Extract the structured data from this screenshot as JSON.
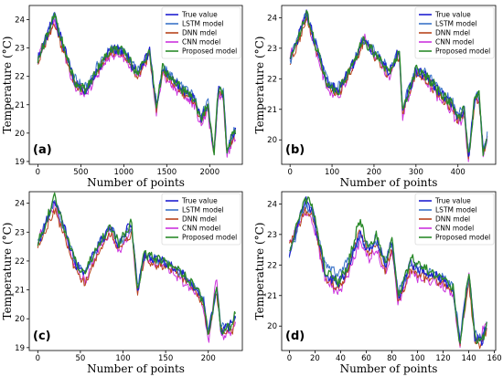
{
  "colors": {
    "true_value": "#1f1fd0",
    "lstm": "#3b73c8",
    "dnn": "#b8441c",
    "cnn": "#cc33dd",
    "proposed": "#2a8a2a"
  },
  "shared": {
    "xlabel": "Number of points",
    "ylabel": "Temperature (°C)",
    "legend_position": "top-right",
    "grid": false
  },
  "chart_data": [
    {
      "type": "line",
      "panel_label": "(a)",
      "xlabel": "Number of points",
      "ylabel": "Temperature (°C)",
      "xlim": [
        -100,
        2380
      ],
      "ylim": [
        18.9,
        24.5
      ],
      "xticks": [
        0,
        500,
        1000,
        1500,
        2000
      ],
      "yticks": [
        19,
        20,
        21,
        22,
        23,
        24
      ],
      "legend": [
        "True value",
        "LSTM model",
        "DNN mdel",
        "CNN model",
        "Proposed model"
      ],
      "key_x": [
        0,
        200,
        230,
        430,
        560,
        700,
        860,
        1000,
        1160,
        1300,
        1380,
        1450,
        1520,
        1700,
        1820,
        1900,
        1980,
        2050,
        2100,
        2160,
        2200,
        2250,
        2300
      ],
      "series": [
        {
          "name": "True value",
          "key_y": [
            22.6,
            24.2,
            23.7,
            21.8,
            21.5,
            22.3,
            23.0,
            22.9,
            22.1,
            22.9,
            20.9,
            22.3,
            22.0,
            21.5,
            21.2,
            20.5,
            21.0,
            19.2,
            21.6,
            21.4,
            19.3,
            19.8,
            20.1
          ]
        },
        {
          "name": "LSTM model",
          "key_y": [
            22.6,
            24.2,
            23.7,
            21.9,
            21.6,
            22.4,
            23.0,
            22.9,
            22.2,
            22.9,
            21.0,
            22.3,
            22.1,
            21.6,
            21.3,
            20.6,
            21.1,
            19.3,
            21.6,
            21.4,
            19.4,
            19.9,
            20.1
          ]
        },
        {
          "name": "DNN mdel",
          "key_y": [
            22.5,
            23.9,
            23.5,
            21.7,
            21.5,
            22.2,
            22.9,
            22.8,
            22.0,
            22.8,
            20.8,
            22.2,
            21.9,
            21.4,
            21.1,
            20.4,
            20.9,
            19.2,
            21.5,
            21.3,
            19.3,
            19.7,
            20.0
          ]
        },
        {
          "name": "CNN model",
          "key_y": [
            22.7,
            24.0,
            23.6,
            21.6,
            21.3,
            22.1,
            22.8,
            22.7,
            21.9,
            22.7,
            20.7,
            22.1,
            21.8,
            21.3,
            21.0,
            20.3,
            20.8,
            19.1,
            21.4,
            21.2,
            19.2,
            19.6,
            19.9
          ]
        },
        {
          "name": "Proposed model",
          "key_y": [
            22.6,
            24.2,
            23.7,
            21.8,
            21.5,
            22.3,
            23.0,
            22.9,
            22.1,
            22.9,
            20.9,
            22.3,
            22.0,
            21.5,
            21.2,
            20.5,
            21.0,
            19.2,
            21.6,
            21.4,
            19.3,
            19.8,
            20.1
          ]
        }
      ]
    },
    {
      "type": "line",
      "panel_label": "(b)",
      "xlabel": "Number of points",
      "ylabel": "Temperature (°C)",
      "xlim": [
        -20,
        490
      ],
      "ylim": [
        19.2,
        24.4
      ],
      "xticks": [
        0,
        100,
        200,
        300,
        400
      ],
      "yticks": [
        20,
        21,
        22,
        23,
        24
      ],
      "legend": [
        "True value",
        "LSTM model",
        "DNN mdel",
        "CNN model",
        "Proposed model"
      ],
      "key_x": [
        0,
        40,
        48,
        90,
        115,
        150,
        175,
        200,
        235,
        260,
        268,
        300,
        330,
        360,
        385,
        400,
        415,
        425,
        440,
        450,
        460,
        470
      ],
      "series": [
        {
          "name": "True value",
          "key_y": [
            22.6,
            24.2,
            23.7,
            21.8,
            21.6,
            22.5,
            23.3,
            22.9,
            22.2,
            22.9,
            21.0,
            22.3,
            22.0,
            21.5,
            21.2,
            20.7,
            21.0,
            19.4,
            21.3,
            21.6,
            19.6,
            20.1
          ]
        },
        {
          "name": "LSTM model",
          "key_y": [
            22.6,
            24.2,
            23.7,
            21.9,
            21.7,
            22.5,
            23.3,
            22.9,
            22.3,
            22.9,
            21.1,
            22.3,
            22.1,
            21.6,
            21.3,
            20.8,
            21.1,
            19.5,
            21.3,
            21.5,
            19.7,
            20.1
          ]
        },
        {
          "name": "DNN mdel",
          "key_y": [
            22.5,
            24.0,
            23.6,
            21.7,
            21.5,
            22.4,
            23.2,
            22.8,
            22.1,
            22.8,
            20.9,
            22.2,
            21.9,
            21.4,
            21.1,
            20.6,
            20.9,
            19.4,
            21.2,
            21.4,
            19.6,
            20.0
          ]
        },
        {
          "name": "CNN model",
          "key_y": [
            22.7,
            24.1,
            23.6,
            21.6,
            21.4,
            22.4,
            23.4,
            22.8,
            22.0,
            22.8,
            20.8,
            22.2,
            21.8,
            21.3,
            21.0,
            20.5,
            20.8,
            19.3,
            21.2,
            21.4,
            19.5,
            19.9
          ]
        },
        {
          "name": "Proposed model",
          "key_y": [
            22.6,
            24.2,
            23.7,
            21.8,
            21.6,
            22.5,
            23.3,
            22.9,
            22.2,
            22.9,
            21.0,
            22.3,
            22.0,
            21.5,
            21.2,
            20.7,
            21.0,
            19.4,
            21.3,
            21.6,
            19.6,
            20.1
          ]
        }
      ]
    },
    {
      "type": "line",
      "panel_label": "(c)",
      "xlabel": "Number of points",
      "ylabel": "Temperature (°C)",
      "xlim": [
        -10,
        240
      ],
      "ylim": [
        18.9,
        24.4
      ],
      "xticks": [
        0,
        50,
        100,
        150,
        200
      ],
      "yticks": [
        19,
        20,
        21,
        22,
        23,
        24
      ],
      "legend": [
        "True value",
        "LSTM model",
        "DNN mdel",
        "CNN model",
        "Proposed model"
      ],
      "key_x": [
        0,
        20,
        25,
        45,
        55,
        70,
        85,
        95,
        110,
        117,
        125,
        135,
        155,
        175,
        185,
        195,
        200,
        210,
        215,
        220,
        228,
        232
      ],
      "series": [
        {
          "name": "True value",
          "key_y": [
            22.6,
            24.2,
            23.7,
            21.9,
            21.6,
            22.5,
            23.2,
            22.6,
            23.3,
            21.0,
            22.3,
            22.1,
            21.9,
            21.4,
            21.1,
            20.5,
            19.4,
            21.1,
            19.6,
            19.7,
            19.8,
            20.2
          ]
        },
        {
          "name": "LSTM model",
          "key_y": [
            22.6,
            24.1,
            23.6,
            21.9,
            21.6,
            22.5,
            23.2,
            22.6,
            23.2,
            21.1,
            22.2,
            22.1,
            21.9,
            21.4,
            21.1,
            20.6,
            19.5,
            21.0,
            19.7,
            19.8,
            19.8,
            20.1
          ]
        },
        {
          "name": "DNN mdel",
          "key_y": [
            22.5,
            23.8,
            23.4,
            21.6,
            21.2,
            22.2,
            23.0,
            22.4,
            23.0,
            20.9,
            22.1,
            21.9,
            21.8,
            21.3,
            21.0,
            20.4,
            19.4,
            20.9,
            19.5,
            19.6,
            19.6,
            20.0
          ]
        },
        {
          "name": "CNN model",
          "key_y": [
            22.7,
            24.0,
            23.5,
            21.7,
            21.3,
            22.3,
            23.1,
            22.3,
            23.1,
            20.9,
            22.1,
            22.0,
            21.7,
            21.2,
            20.9,
            20.3,
            19.1,
            21.5,
            19.3,
            19.5,
            19.6,
            19.9
          ]
        },
        {
          "name": "Proposed model",
          "key_y": [
            22.6,
            24.2,
            23.7,
            21.9,
            21.6,
            22.5,
            23.2,
            22.6,
            23.3,
            21.0,
            22.3,
            22.1,
            21.9,
            21.4,
            21.1,
            20.5,
            19.4,
            21.1,
            19.6,
            19.7,
            19.8,
            20.2
          ]
        }
      ]
    },
    {
      "type": "line",
      "panel_label": "(d)",
      "xlabel": "Number of points",
      "ylabel": "Temperature (°C)",
      "xlim": [
        -6,
        161
      ],
      "ylim": [
        19.2,
        24.4
      ],
      "xticks": [
        0,
        20,
        40,
        60,
        80,
        100,
        120,
        140,
        160
      ],
      "yticks": [
        20,
        21,
        22,
        23,
        24
      ],
      "legend": [
        "True value",
        "LSTM model",
        "DNN mdel",
        "CNN model",
        "Proposed model"
      ],
      "key_x": [
        0,
        12,
        18,
        28,
        38,
        45,
        55,
        62,
        68,
        75,
        80,
        85,
        95,
        100,
        120,
        128,
        133,
        140,
        145,
        150,
        154
      ],
      "series": [
        {
          "name": "True value",
          "key_y": [
            22.4,
            24.1,
            23.8,
            21.7,
            21.4,
            21.9,
            23.0,
            22.5,
            22.9,
            22.0,
            22.8,
            20.9,
            22.1,
            21.9,
            21.5,
            21.2,
            19.4,
            21.8,
            19.6,
            19.5,
            20.0
          ]
        },
        {
          "name": "LSTM model",
          "key_y": [
            22.3,
            24.0,
            23.7,
            22.0,
            21.7,
            22.1,
            22.9,
            22.6,
            22.8,
            22.1,
            22.8,
            21.1,
            22.0,
            21.9,
            21.6,
            21.3,
            19.6,
            21.6,
            19.8,
            19.6,
            20.0
          ]
        },
        {
          "name": "DNN mdel",
          "key_y": [
            22.6,
            23.8,
            23.6,
            21.6,
            21.2,
            21.7,
            23.2,
            22.3,
            22.7,
            21.8,
            22.6,
            20.8,
            21.9,
            21.7,
            21.4,
            21.1,
            19.4,
            21.4,
            19.5,
            19.4,
            19.9
          ]
        },
        {
          "name": "CNN model",
          "key_y": [
            22.7,
            23.7,
            23.5,
            21.5,
            21.1,
            21.6,
            22.7,
            22.2,
            22.5,
            21.7,
            22.5,
            20.7,
            21.8,
            21.6,
            21.3,
            21.0,
            19.3,
            21.7,
            19.5,
            19.7,
            20.2
          ]
        },
        {
          "name": "Proposed model",
          "key_y": [
            22.4,
            24.2,
            23.9,
            21.8,
            21.4,
            21.9,
            23.5,
            22.5,
            23.0,
            22.0,
            22.9,
            20.9,
            22.2,
            22.0,
            21.5,
            21.2,
            19.4,
            21.8,
            19.6,
            19.5,
            20.0
          ]
        }
      ]
    }
  ]
}
